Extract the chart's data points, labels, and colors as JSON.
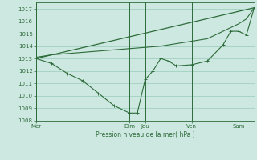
{
  "bg_color": "#cde8e0",
  "grid_color": "#99ccbb",
  "line_color": "#2d6b3a",
  "xlabel": "Pression niveau de la mer( hPa )",
  "ylim": [
    1008,
    1017.5
  ],
  "yticks": [
    1008,
    1009,
    1010,
    1011,
    1012,
    1013,
    1014,
    1015,
    1016,
    1017
  ],
  "day_labels": [
    "Mer",
    "Dim",
    "Jeu",
    "Ven",
    "Sam"
  ],
  "day_positions": [
    0,
    18,
    21,
    30,
    39
  ],
  "xlim": [
    0,
    42
  ],
  "series1_x": [
    0,
    42
  ],
  "series1_y": [
    1013.0,
    1017.1
  ],
  "series2_x": [
    0,
    3,
    6,
    9,
    12,
    15,
    18,
    19.5,
    21,
    22.5,
    24,
    25.5,
    27,
    30,
    33,
    36,
    37.5,
    39,
    40.5,
    42
  ],
  "series2_y": [
    1013.0,
    1012.6,
    1011.8,
    1011.2,
    1010.2,
    1009.2,
    1008.6,
    1008.6,
    1011.3,
    1012.0,
    1013.0,
    1012.8,
    1012.4,
    1012.5,
    1012.8,
    1014.1,
    1015.2,
    1015.2,
    1014.9,
    1017.1
  ],
  "series3_x": [
    0,
    3,
    6,
    9,
    12,
    15,
    18,
    19.5,
    21,
    22.5,
    24,
    25.5,
    27,
    30,
    33,
    36,
    37.5,
    39,
    40.5,
    42
  ],
  "series3_y": [
    1013.1,
    1013.3,
    1013.4,
    1013.5,
    1013.6,
    1013.7,
    1013.8,
    1013.85,
    1013.9,
    1013.95,
    1014.0,
    1014.1,
    1014.2,
    1014.4,
    1014.6,
    1015.2,
    1015.5,
    1015.8,
    1016.2,
    1017.1
  ]
}
